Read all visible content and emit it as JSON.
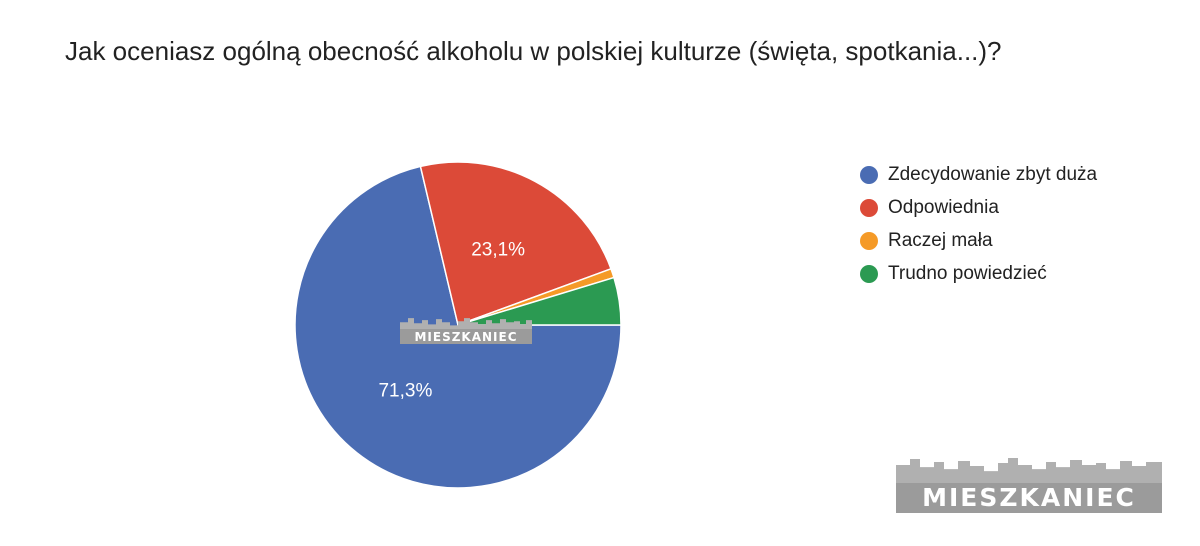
{
  "chart_data": {
    "type": "pie",
    "title": "Jak oceniasz ogólną obecność alkoholu w polskiej kulturze (święta, spotkania...)?",
    "legend_position": "right",
    "slices": [
      {
        "label": "Zdecydowanie zbyt duża",
        "value": 71.3,
        "value_label": "71,3%",
        "color": "#4a6cb3"
      },
      {
        "label": "Odpowiednia",
        "value": 23.1,
        "value_label": "23,1%",
        "color": "#dc4a38"
      },
      {
        "label": "Raczej mała",
        "value": 0.9,
        "value_label": "",
        "color": "#f59a27"
      },
      {
        "label": "Trudno powiedzieć",
        "value": 4.7,
        "value_label": "",
        "color": "#2b9a52"
      }
    ]
  },
  "watermark": {
    "text": "MIESZKANIEC"
  }
}
